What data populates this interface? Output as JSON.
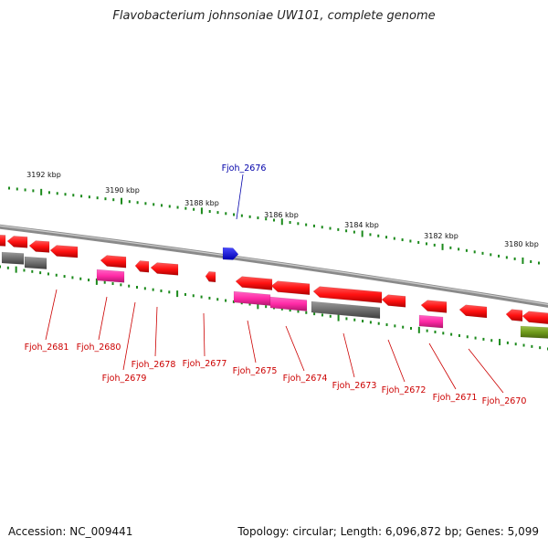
{
  "title": "Flavobacterium johnsoniae UW101, complete genome",
  "accession": "Accession: NC_009441",
  "summary": "Topology: circular; Length: 6,096,872 bp; Genes: 5,099",
  "colors": {
    "forward": "#ff1a1a",
    "highlight": "#0000ee",
    "magenta": "#ff2aa6",
    "grey": "#6e6e6e",
    "olive": "#6e9a1a",
    "tick": "#1b8a1b",
    "label_red": "#cc0000",
    "label_blue": "#0000aa"
  },
  "scale_labels": [
    "3192 kbp",
    "3190 kbp",
    "3188 kbp",
    "3186 kbp",
    "3184 kbp",
    "3182 kbp",
    "3180 kbp"
  ],
  "genes": {
    "highlight": "Fjoh_2676",
    "labels": [
      "Fjoh_2681",
      "Fjoh_2680",
      "Fjoh_2679",
      "Fjoh_2678",
      "Fjoh_2677",
      "Fjoh_2675",
      "Fjoh_2674",
      "Fjoh_2673",
      "Fjoh_2672",
      "Fjoh_2671",
      "Fjoh_2670"
    ]
  }
}
